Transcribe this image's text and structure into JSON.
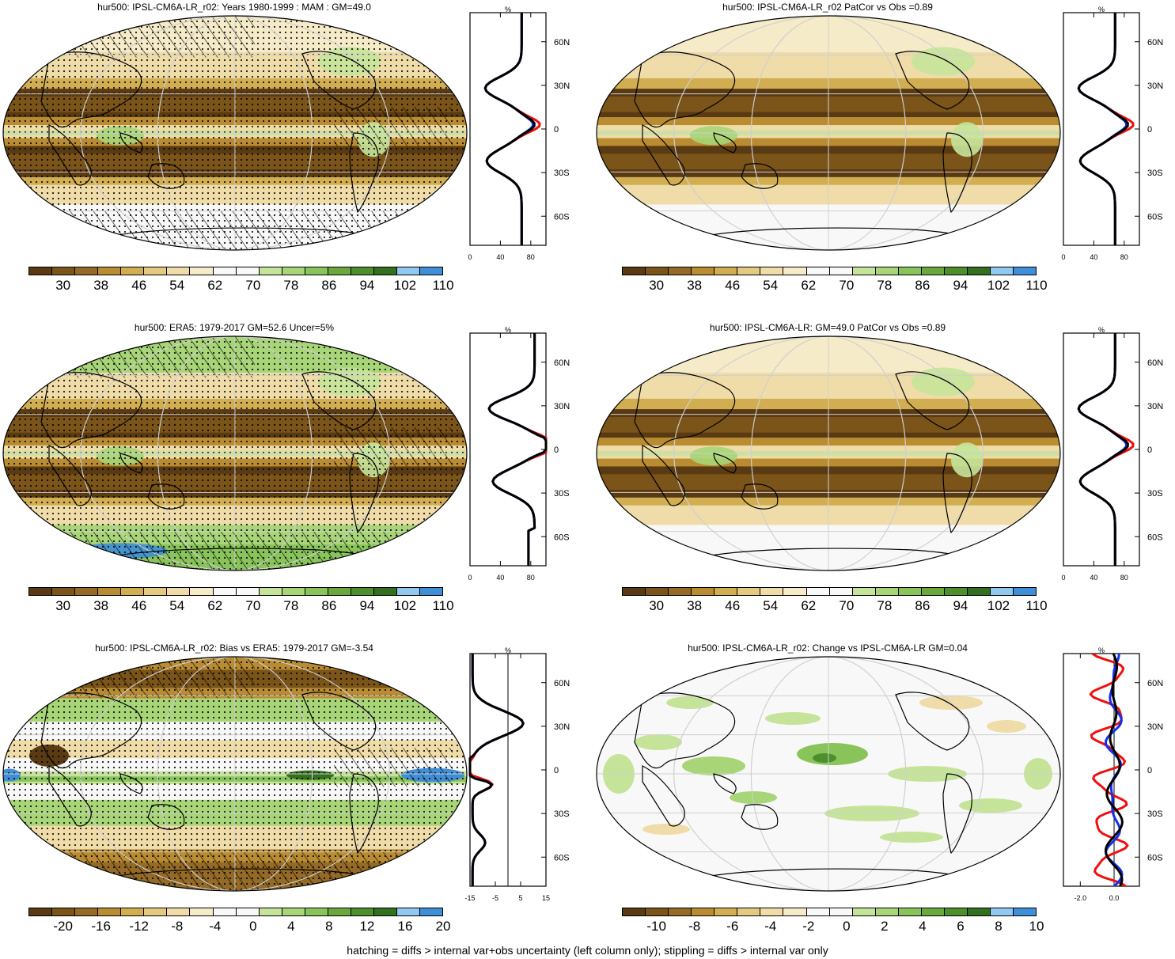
{
  "colors": {
    "hur_scale": [
      "#5a3a12",
      "#7a5418",
      "#946a26",
      "#b98c32",
      "#d2ae52",
      "#e3ca80",
      "#efdca8",
      "#f5ebc8",
      "#f8f8f8",
      "#f8f8f8",
      "#c5e49a",
      "#a7d577",
      "#89c45a",
      "#6aa83d",
      "#4d8e2d",
      "#346f1f",
      "#90c8f0",
      "#3f8fd8"
    ],
    "bias_scale": [
      "#5a3a12",
      "#7a5418",
      "#946a26",
      "#b98c32",
      "#d2ae52",
      "#e3ca80",
      "#efdca8",
      "#f5ebc8",
      "#f8f8f8",
      "#f8f8f8",
      "#c5e49a",
      "#a7d577",
      "#89c45a",
      "#6aa83d",
      "#4d8e2d",
      "#346f1f",
      "#90c8f0",
      "#3f8fd8"
    ],
    "series_red": "#ee1010",
    "series_blue": "#1030ee",
    "series_black": "#000000"
  },
  "panels": [
    {
      "title": "hur500: IPSL-CM6A-LR_r02: Years 1980-1999 : MAM : GM=49.0",
      "zonal_unit": "%",
      "zonal_xticks": [
        "0",
        "40",
        "80"
      ],
      "yticks": [
        "60N",
        "30N",
        "0",
        "30S",
        "60S"
      ],
      "cb_labels": [
        "30",
        "38",
        "46",
        "54",
        "62",
        "70",
        "78",
        "86",
        "94",
        "102",
        "110"
      ],
      "hatch": true,
      "kind": "clim"
    },
    {
      "title": "hur500: IPSL-CM6A-LR_r02 PatCor vs Obs =0.89",
      "zonal_unit": "%",
      "zonal_xticks": [
        "0",
        "40",
        "80"
      ],
      "yticks": [
        "60N",
        "30N",
        "0",
        "30S",
        "60S"
      ],
      "cb_labels": [
        "30",
        "38",
        "46",
        "54",
        "62",
        "70",
        "78",
        "86",
        "94",
        "102",
        "110"
      ],
      "hatch": false,
      "kind": "clim"
    },
    {
      "title": "hur500: ERA5: 1979-2017 GM=52.6 Uncer=5%",
      "zonal_unit": "%",
      "zonal_xticks": [
        "0",
        "40",
        "80"
      ],
      "yticks": [
        "60N",
        "30N",
        "0",
        "30S",
        "60S"
      ],
      "cb_labels": [
        "30",
        "38",
        "46",
        "54",
        "62",
        "70",
        "78",
        "86",
        "94",
        "102",
        "110"
      ],
      "hatch": true,
      "kind": "obs"
    },
    {
      "title": "hur500: IPSL-CM6A-LR: GM=49.0 PatCor vs Obs =0.89",
      "zonal_unit": "%",
      "zonal_xticks": [
        "0",
        "40",
        "80"
      ],
      "yticks": [
        "60N",
        "30N",
        "0",
        "30S",
        "60S"
      ],
      "cb_labels": [
        "30",
        "38",
        "46",
        "54",
        "62",
        "70",
        "78",
        "86",
        "94",
        "102",
        "110"
      ],
      "hatch": false,
      "kind": "clim"
    },
    {
      "title": "hur500: IPSL-CM6A-LR_r02: Bias vs ERA5: 1979-2017 GM=-3.54",
      "zonal_unit": "%",
      "zonal_xticks": [
        "-15",
        "-5",
        "5",
        "15"
      ],
      "yticks": [
        "60N",
        "30N",
        "0",
        "30S",
        "60S"
      ],
      "cb_labels": [
        "-20",
        "-16",
        "-12",
        "-8",
        "-4",
        "0",
        "4",
        "8",
        "12",
        "16",
        "20"
      ],
      "hatch": true,
      "kind": "bias"
    },
    {
      "title": "hur500: IPSL-CM6A-LR_r02: Change vs IPSL-CM6A-LR GM=0.04",
      "zonal_unit": "%",
      "zonal_xticks": [
        "-2.0",
        "0.0"
      ],
      "yticks": [
        "60N",
        "30N",
        "0",
        "30S",
        "60S"
      ],
      "cb_labels": [
        "-10",
        "-8",
        "-6",
        "-4",
        "-2",
        "0",
        "2",
        "4",
        "6",
        "8",
        "10"
      ],
      "hatch": false,
      "kind": "change"
    }
  ],
  "footer": "hatching = diffs > internal var+obs uncertainty (left column only); stippling = diffs > internal var only"
}
